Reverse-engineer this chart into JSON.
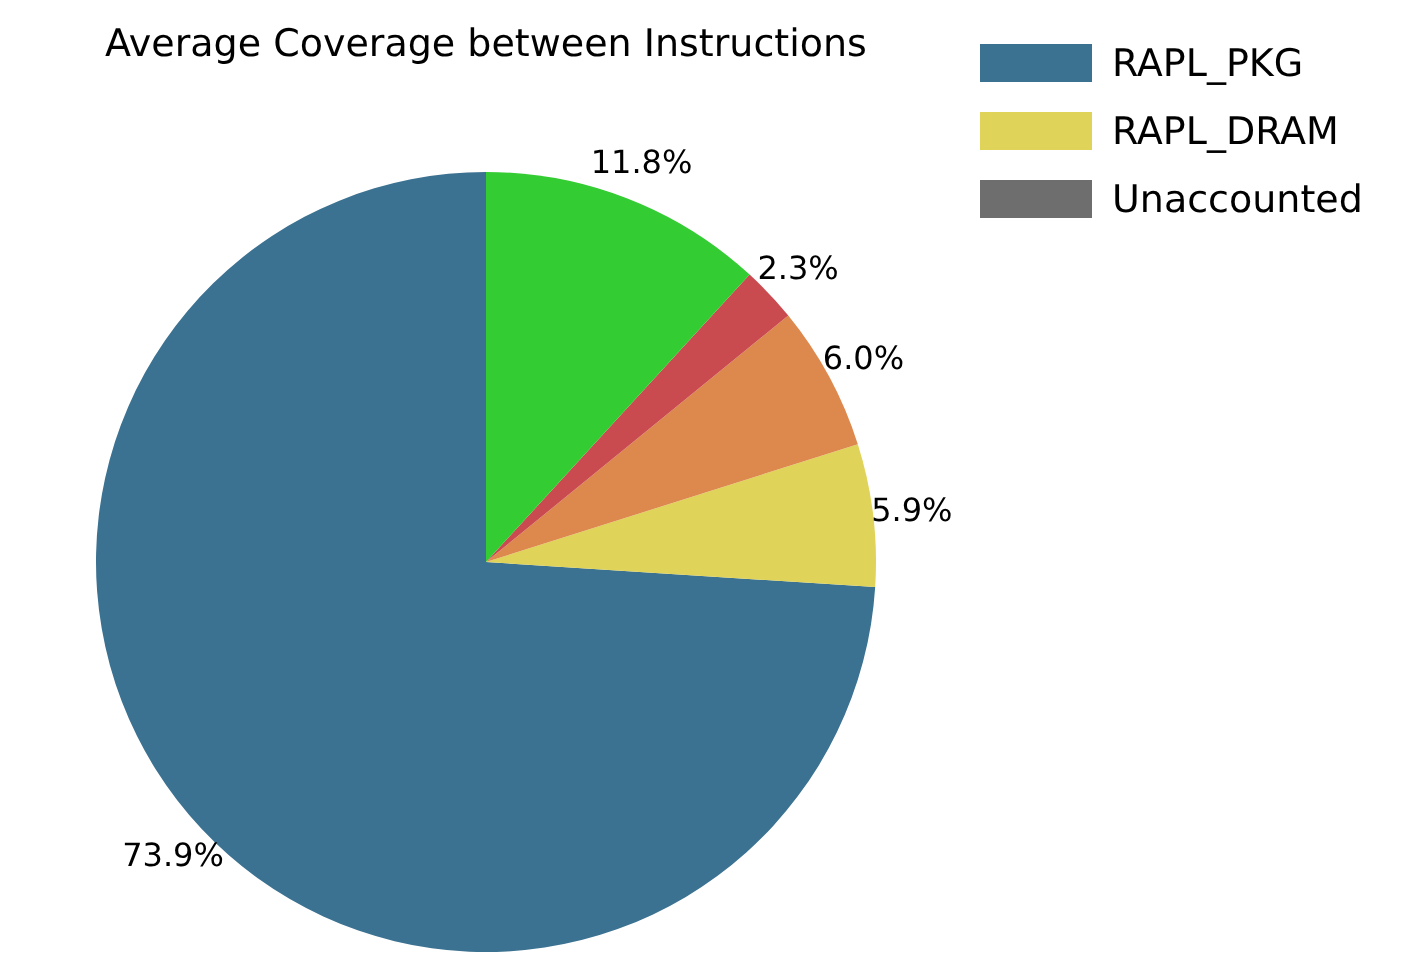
{
  "chart_data": {
    "type": "pie",
    "title": "Average Coverage between Instructions",
    "categories": [
      "RAPL_PKG",
      "RAPL_DRAM",
      null,
      null,
      null,
      "Unaccounted"
    ],
    "values": [
      73.9,
      5.9,
      6.0,
      2.3,
      11.8,
      0
    ],
    "colors": [
      "#3b7191",
      "#e0d35a",
      "#dd884d",
      "#c94a4f",
      "#33cc33",
      "#6e6e6e"
    ],
    "value_labels": [
      "73.9%",
      "5.9%",
      "6.0%",
      "2.3%",
      "11.8%",
      null
    ],
    "legend": "top right"
  }
}
